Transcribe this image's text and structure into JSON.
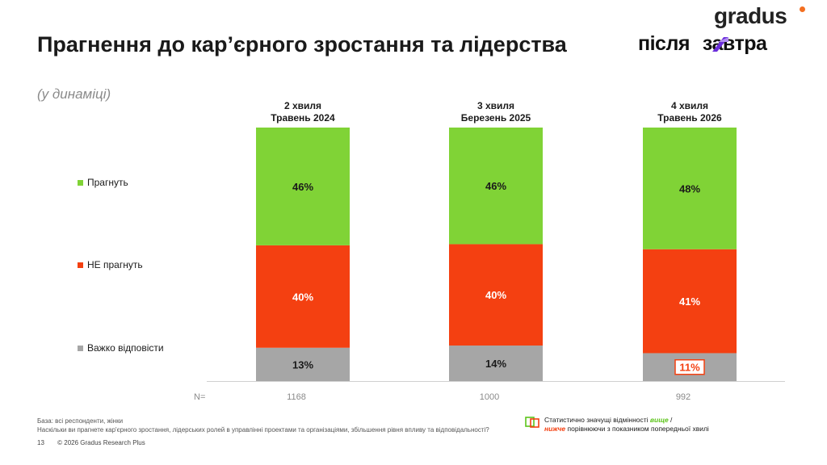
{
  "title": "Прагнення до кар’єрного зростання та лідерства",
  "subtitle": "(у динаміці)",
  "logo": {
    "brand": "gradus",
    "project_left": "після",
    "project_right": "завтра"
  },
  "colors": {
    "green": "#80d336",
    "red": "#f44011",
    "gray": "#a6a6a6",
    "highlight_red": "#f44011"
  },
  "chart_data": {
    "type": "bar",
    "stacked": true,
    "categories": [
      "2 хвиля\nТравень 2024",
      "3 хвиля\nБерезень 2025",
      "4 хвиля\nТравень 2026"
    ],
    "category_lines": [
      [
        "2 хвиля",
        "Травень 2024"
      ],
      [
        "3 хвиля",
        "Березень 2025"
      ],
      [
        "4 хвиля",
        "Травень 2026"
      ]
    ],
    "series": [
      {
        "name": "Важко відповісти",
        "values": [
          13,
          14,
          11
        ],
        "labels": [
          "13%",
          "14%",
          "11%"
        ],
        "color": "#a6a6a6"
      },
      {
        "name": "НЕ прагнуть",
        "values": [
          40,
          40,
          41
        ],
        "labels": [
          "40%",
          "40%",
          "41%"
        ],
        "color": "#f44011"
      },
      {
        "name": "Прагнуть",
        "values": [
          46,
          46,
          48
        ],
        "labels": [
          "46%",
          "46%",
          "48%"
        ],
        "color": "#80d336"
      }
    ],
    "highlights": [
      {
        "series": "Важко відповісти",
        "category_index": 2,
        "direction": "нижче"
      }
    ],
    "n_label": "N=",
    "n_values": [
      "1168",
      "1000",
      "992"
    ],
    "legend_placement": "left"
  },
  "legend": [
    {
      "label": "Прагнуть",
      "color": "#80d336"
    },
    {
      "label": "НЕ прагнуть",
      "color": "#f44011"
    },
    {
      "label": "Важко відповісти",
      "color": "#a6a6a6"
    }
  ],
  "footnote": {
    "base": "База: всі респонденти, жінки",
    "question": "Наскільки ви прагнете кар'єрного зростання, лідерських ролей в управлінні проектами та організаціями, збільшення рівня впливу та відповідальності?"
  },
  "stat_note": {
    "prefix": "Статистично значущі відмінності ",
    "higher": "вище",
    "sep": " /",
    "lower": "нижче",
    "suffix": " порівнюючи з показником попередньої хвилі"
  },
  "footer": {
    "page": "13",
    "copyright": "© 2026 Gradus Research Plus"
  }
}
